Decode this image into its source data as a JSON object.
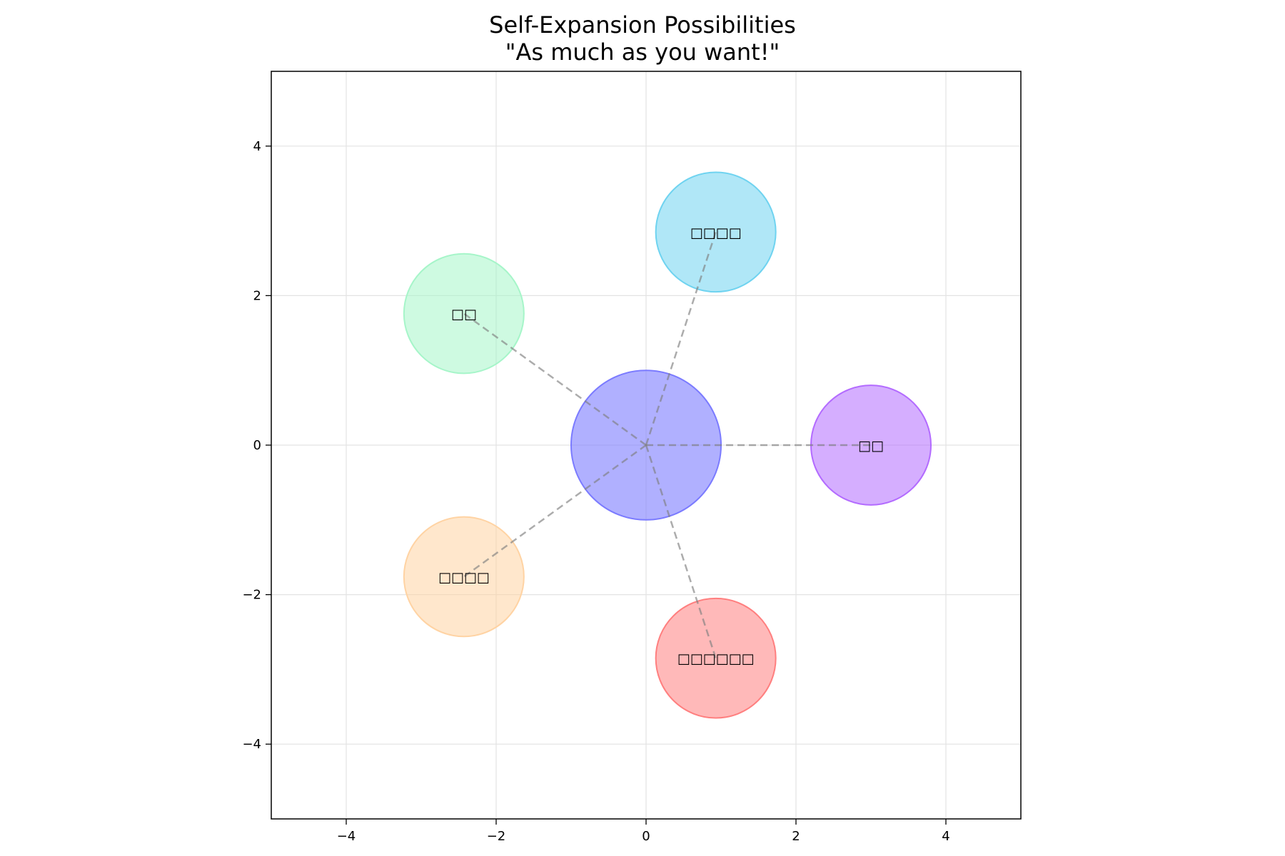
{
  "chart_data": {
    "type": "scatter",
    "title": "Self-Expansion Possibilities",
    "subtitle": "\"As much as you want!\"",
    "xlabel": "",
    "ylabel": "",
    "xlim": [
      -5,
      5
    ],
    "ylim": [
      -5,
      5
    ],
    "x_ticks": [
      -4,
      -2,
      0,
      2,
      4
    ],
    "y_ticks": [
      -4,
      -2,
      0,
      2,
      4
    ],
    "grid": true,
    "center": {
      "x": 0,
      "y": 0,
      "r": 1.0,
      "color": "#7b7bff",
      "label": ""
    },
    "bubbles": [
      {
        "label": "□□",
        "x": 3.0,
        "y": 0.0,
        "r": 0.8,
        "color": "#b36bff"
      },
      {
        "label": "□□□□",
        "x": 0.93,
        "y": 2.85,
        "r": 0.8,
        "color": "#6fd3f0"
      },
      {
        "label": "□□",
        "x": -2.43,
        "y": 1.76,
        "r": 0.8,
        "color": "#a6f5c9"
      },
      {
        "label": "□□□□",
        "x": -2.43,
        "y": -1.76,
        "r": 0.8,
        "color": "#ffd3a3"
      },
      {
        "label": "□□□□□□",
        "x": 0.93,
        "y": -2.85,
        "r": 0.8,
        "color": "#ff7f7f"
      }
    ],
    "connector_color": "#808080"
  }
}
